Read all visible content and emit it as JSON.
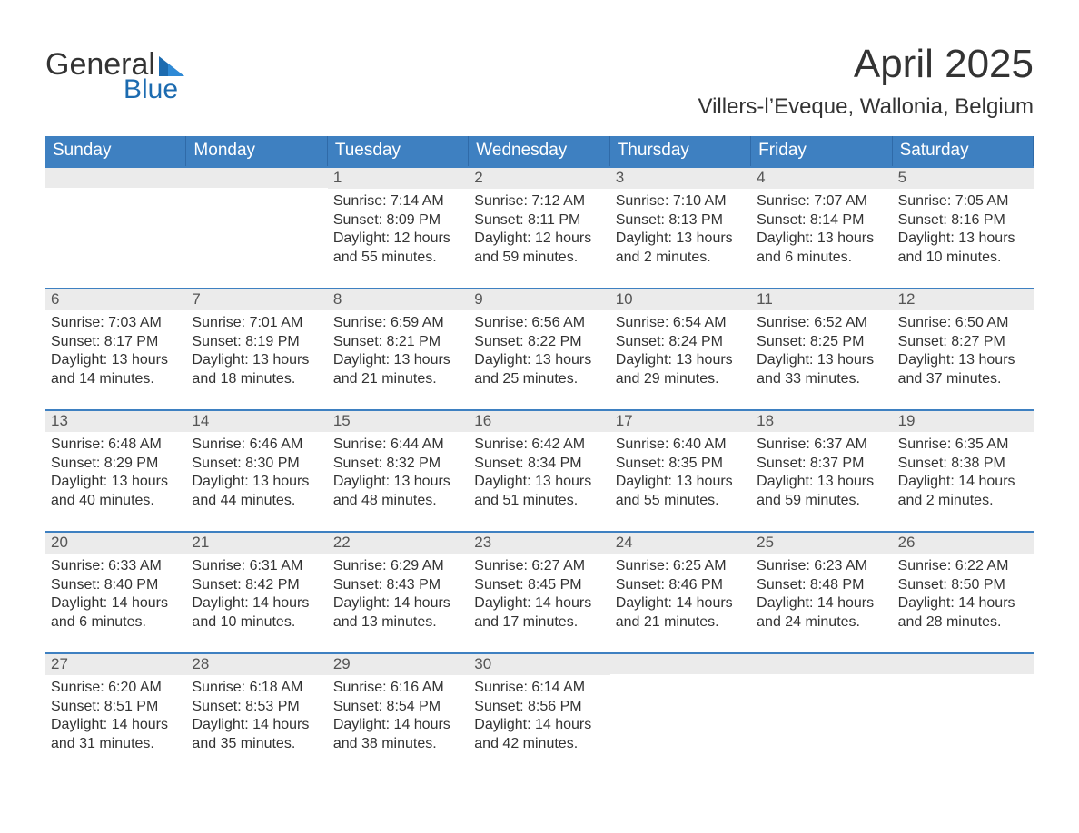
{
  "brand": {
    "word1": "General",
    "word2": "Blue"
  },
  "colors": {
    "header_blue": "#3e80c1",
    "header_blue_dark": "#2f6aa8",
    "row_top_border": "#3e80c1",
    "daynum_bg": "#ebebeb",
    "text": "#333333",
    "logo_blue": "#1c6bb0",
    "background": "#ffffff"
  },
  "title": "April 2025",
  "location": "Villers-l’Eveque, Wallonia, Belgium",
  "daysOfWeek": [
    "Sunday",
    "Monday",
    "Tuesday",
    "Wednesday",
    "Thursday",
    "Friday",
    "Saturday"
  ],
  "layout": {
    "leadingBlanks": 2,
    "daysInMonth": 30,
    "columns": 7,
    "rows": 5
  },
  "days": [
    {
      "n": 1,
      "sunrise": "7:14 AM",
      "sunset": "8:09 PM",
      "daylight": "12 hours and 55 minutes."
    },
    {
      "n": 2,
      "sunrise": "7:12 AM",
      "sunset": "8:11 PM",
      "daylight": "12 hours and 59 minutes."
    },
    {
      "n": 3,
      "sunrise": "7:10 AM",
      "sunset": "8:13 PM",
      "daylight": "13 hours and 2 minutes."
    },
    {
      "n": 4,
      "sunrise": "7:07 AM",
      "sunset": "8:14 PM",
      "daylight": "13 hours and 6 minutes."
    },
    {
      "n": 5,
      "sunrise": "7:05 AM",
      "sunset": "8:16 PM",
      "daylight": "13 hours and 10 minutes."
    },
    {
      "n": 6,
      "sunrise": "7:03 AM",
      "sunset": "8:17 PM",
      "daylight": "13 hours and 14 minutes."
    },
    {
      "n": 7,
      "sunrise": "7:01 AM",
      "sunset": "8:19 PM",
      "daylight": "13 hours and 18 minutes."
    },
    {
      "n": 8,
      "sunrise": "6:59 AM",
      "sunset": "8:21 PM",
      "daylight": "13 hours and 21 minutes."
    },
    {
      "n": 9,
      "sunrise": "6:56 AM",
      "sunset": "8:22 PM",
      "daylight": "13 hours and 25 minutes."
    },
    {
      "n": 10,
      "sunrise": "6:54 AM",
      "sunset": "8:24 PM",
      "daylight": "13 hours and 29 minutes."
    },
    {
      "n": 11,
      "sunrise": "6:52 AM",
      "sunset": "8:25 PM",
      "daylight": "13 hours and 33 minutes."
    },
    {
      "n": 12,
      "sunrise": "6:50 AM",
      "sunset": "8:27 PM",
      "daylight": "13 hours and 37 minutes."
    },
    {
      "n": 13,
      "sunrise": "6:48 AM",
      "sunset": "8:29 PM",
      "daylight": "13 hours and 40 minutes."
    },
    {
      "n": 14,
      "sunrise": "6:46 AM",
      "sunset": "8:30 PM",
      "daylight": "13 hours and 44 minutes."
    },
    {
      "n": 15,
      "sunrise": "6:44 AM",
      "sunset": "8:32 PM",
      "daylight": "13 hours and 48 minutes."
    },
    {
      "n": 16,
      "sunrise": "6:42 AM",
      "sunset": "8:34 PM",
      "daylight": "13 hours and 51 minutes."
    },
    {
      "n": 17,
      "sunrise": "6:40 AM",
      "sunset": "8:35 PM",
      "daylight": "13 hours and 55 minutes."
    },
    {
      "n": 18,
      "sunrise": "6:37 AM",
      "sunset": "8:37 PM",
      "daylight": "13 hours and 59 minutes."
    },
    {
      "n": 19,
      "sunrise": "6:35 AM",
      "sunset": "8:38 PM",
      "daylight": "14 hours and 2 minutes."
    },
    {
      "n": 20,
      "sunrise": "6:33 AM",
      "sunset": "8:40 PM",
      "daylight": "14 hours and 6 minutes."
    },
    {
      "n": 21,
      "sunrise": "6:31 AM",
      "sunset": "8:42 PM",
      "daylight": "14 hours and 10 minutes."
    },
    {
      "n": 22,
      "sunrise": "6:29 AM",
      "sunset": "8:43 PM",
      "daylight": "14 hours and 13 minutes."
    },
    {
      "n": 23,
      "sunrise": "6:27 AM",
      "sunset": "8:45 PM",
      "daylight": "14 hours and 17 minutes."
    },
    {
      "n": 24,
      "sunrise": "6:25 AM",
      "sunset": "8:46 PM",
      "daylight": "14 hours and 21 minutes."
    },
    {
      "n": 25,
      "sunrise": "6:23 AM",
      "sunset": "8:48 PM",
      "daylight": "14 hours and 24 minutes."
    },
    {
      "n": 26,
      "sunrise": "6:22 AM",
      "sunset": "8:50 PM",
      "daylight": "14 hours and 28 minutes."
    },
    {
      "n": 27,
      "sunrise": "6:20 AM",
      "sunset": "8:51 PM",
      "daylight": "14 hours and 31 minutes."
    },
    {
      "n": 28,
      "sunrise": "6:18 AM",
      "sunset": "8:53 PM",
      "daylight": "14 hours and 35 minutes."
    },
    {
      "n": 29,
      "sunrise": "6:16 AM",
      "sunset": "8:54 PM",
      "daylight": "14 hours and 38 minutes."
    },
    {
      "n": 30,
      "sunrise": "6:14 AM",
      "sunset": "8:56 PM",
      "daylight": "14 hours and 42 minutes."
    }
  ],
  "labels": {
    "sunrise": "Sunrise: ",
    "sunset": "Sunset: ",
    "daylight": "Daylight: "
  }
}
